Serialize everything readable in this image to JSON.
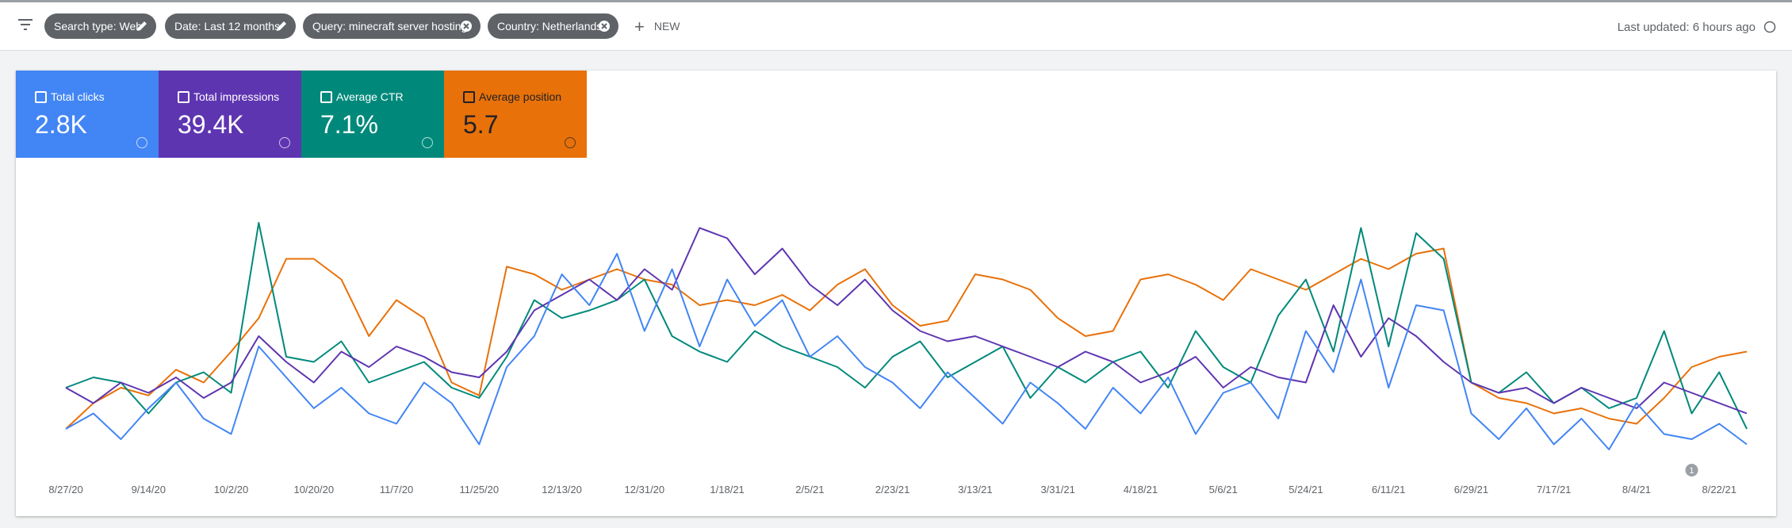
{
  "toolbar": {
    "filters": [
      {
        "label": "Search type: Web"
      },
      {
        "label": "Date: Last 12 months"
      },
      {
        "label": "Query: minecraft server hosting"
      },
      {
        "label": "Country: Netherlands"
      }
    ],
    "new_button": "NEW",
    "last_updated": "Last updated: 6 hours ago"
  },
  "chart_data": {
    "type": "line",
    "categories": [
      "8/27/20",
      null,
      null,
      "9/14/20",
      null,
      null,
      "10/2/20",
      null,
      null,
      "10/20/20",
      null,
      null,
      "11/7/20",
      null,
      null,
      "11/25/20",
      null,
      null,
      "12/13/20",
      null,
      null,
      "12/31/20",
      null,
      null,
      "1/18/21",
      null,
      null,
      "2/5/21",
      null,
      null,
      "2/23/21",
      null,
      null,
      "3/13/21",
      null,
      null,
      "3/31/21",
      null,
      null,
      "4/18/21",
      null,
      null,
      "5/6/21",
      null,
      null,
      "5/24/21",
      null,
      null,
      "6/11/21",
      null,
      null,
      "6/29/21",
      null,
      null,
      "7/17/21",
      null,
      null,
      "8/4/21",
      null,
      null,
      "8/22/21",
      null
    ],
    "ylim": [
      0,
      100
    ],
    "series": [
      {
        "name": "Total clicks",
        "total": "2.8K",
        "color": "#4285f4",
        "values": [
          12,
          18,
          8,
          20,
          30,
          16,
          10,
          44,
          32,
          20,
          28,
          18,
          14,
          30,
          22,
          6,
          36,
          48,
          72,
          60,
          80,
          50,
          74,
          44,
          70,
          52,
          62,
          40,
          48,
          36,
          30,
          20,
          34,
          24,
          14,
          30,
          22,
          12,
          28,
          18,
          32,
          10,
          26,
          30,
          16,
          50,
          34,
          70,
          28,
          60,
          58,
          18,
          8,
          20,
          6,
          16,
          4,
          22,
          10,
          8,
          14,
          6
        ]
      },
      {
        "name": "Total impressions",
        "total": "39.4K",
        "color": "#5e35b1",
        "values": [
          28,
          22,
          30,
          26,
          32,
          24,
          30,
          48,
          38,
          30,
          42,
          36,
          44,
          40,
          34,
          32,
          42,
          58,
          64,
          70,
          62,
          74,
          66,
          90,
          86,
          72,
          82,
          68,
          60,
          70,
          58,
          50,
          46,
          48,
          44,
          40,
          36,
          42,
          38,
          30,
          34,
          40,
          28,
          36,
          32,
          30,
          60,
          40,
          55,
          48,
          38,
          30,
          26,
          28,
          22,
          28,
          24,
          20,
          30,
          26,
          22,
          18
        ]
      },
      {
        "name": "Average CTR",
        "total": "7.1%",
        "color": "#00897b",
        "values": [
          28,
          32,
          30,
          18,
          30,
          34,
          26,
          92,
          40,
          38,
          46,
          30,
          34,
          38,
          28,
          24,
          40,
          62,
          55,
          58,
          62,
          70,
          48,
          42,
          38,
          50,
          44,
          40,
          36,
          28,
          40,
          46,
          32,
          38,
          44,
          24,
          36,
          30,
          38,
          42,
          28,
          50,
          36,
          30,
          56,
          70,
          42,
          90,
          44,
          88,
          78,
          30,
          26,
          34,
          22,
          28,
          20,
          24,
          50,
          18,
          34,
          12
        ]
      },
      {
        "name": "Average position",
        "total": "5.7",
        "color": "#e8710a",
        "values": [
          12,
          22,
          28,
          25,
          35,
          30,
          42,
          55,
          78,
          78,
          70,
          48,
          62,
          55,
          30,
          25,
          75,
          72,
          66,
          70,
          74,
          70,
          68,
          60,
          62,
          60,
          64,
          58,
          68,
          74,
          60,
          52,
          54,
          72,
          70,
          66,
          55,
          48,
          50,
          70,
          72,
          68,
          62,
          74,
          70,
          66,
          72,
          78,
          74,
          80,
          82,
          30,
          24,
          22,
          18,
          20,
          16,
          14,
          24,
          36,
          40,
          42
        ]
      }
    ],
    "annotations": [
      "1"
    ]
  }
}
